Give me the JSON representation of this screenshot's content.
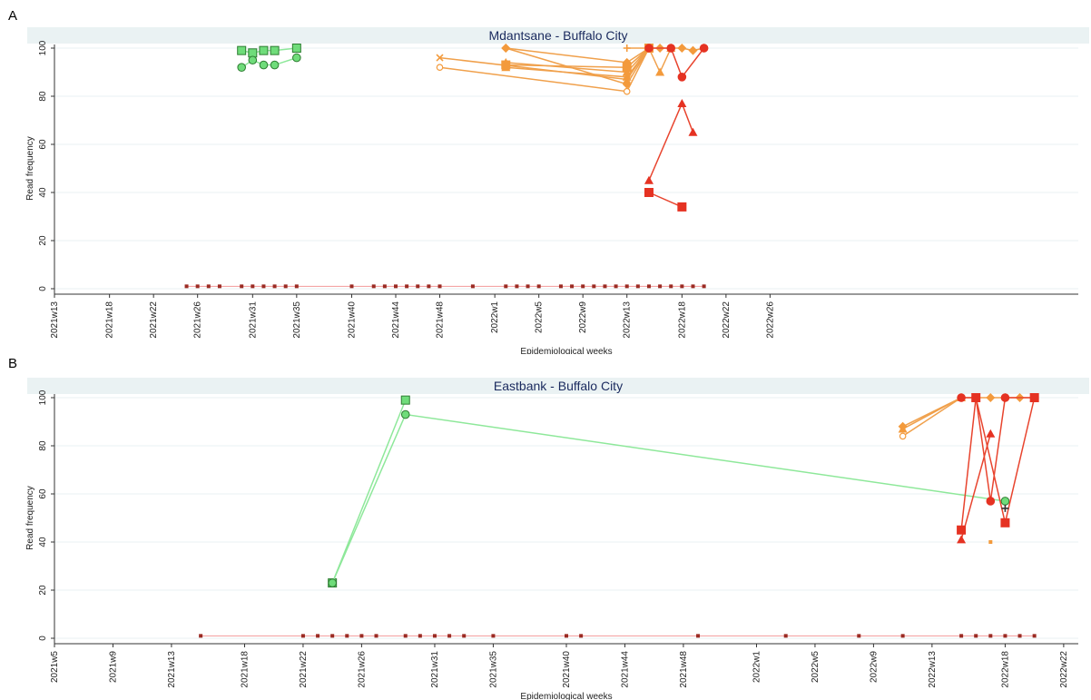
{
  "panels": [
    {
      "letter": "A"
    },
    {
      "letter": "B"
    }
  ],
  "colors": {
    "title_band": "#eaf2f3",
    "title_text": "#1a2a5e",
    "grid": "#eaf2f3",
    "green_line": "#8ee89a",
    "green_fill": "#6fdc7a",
    "orange_line": "#f0a04b",
    "orange_fill": "#f39a3c",
    "red_line": "#e8442e",
    "red_fill": "#e53222",
    "baseline_line": "#f29a9a",
    "baseline_marker": "#9b2b23"
  },
  "chart_data": [
    {
      "type": "line",
      "title": "Mdantsane - Buffalo City",
      "xlabel": "Epidemiological weeks",
      "ylabel": "Read frequency",
      "ylim": [
        0,
        100
      ],
      "yticks": [
        0,
        20,
        40,
        60,
        80,
        100
      ],
      "xlim": [
        13,
        106
      ],
      "xtick_labels": [
        "2021w13",
        "2021w18",
        "2021w22",
        "2021w26",
        "2021w31",
        "2021w35",
        "2021w40",
        "2021w44",
        "2021w48",
        "2022w1",
        "2022w5",
        "2022w9",
        "2022w13",
        "2022w18",
        "2022w22",
        "2022w26"
      ],
      "xtick_weeks": [
        13,
        18,
        22,
        26,
        31,
        35,
        40,
        44,
        48,
        53,
        57,
        61,
        65,
        70,
        74,
        78
      ],
      "series": [
        {
          "color": "green",
          "marker": "square",
          "x": [
            30,
            31,
            32,
            33,
            35
          ],
          "y": [
            99,
            98,
            99,
            99,
            100
          ]
        },
        {
          "color": "green",
          "marker": "circle",
          "x": [
            30,
            31,
            32,
            33,
            35
          ],
          "y": [
            92,
            95,
            93,
            93,
            96
          ]
        },
        {
          "color": "orange",
          "marker": "x",
          "x": [
            48,
            65,
            67
          ],
          "y": [
            96,
            87,
            100
          ]
        },
        {
          "color": "orange",
          "marker": "hollow-circle",
          "x": [
            48,
            65,
            67
          ],
          "y": [
            92,
            82,
            100
          ]
        },
        {
          "color": "orange",
          "marker": "triangle",
          "x": [
            54,
            65,
            67
          ],
          "y": [
            92,
            88,
            100
          ]
        },
        {
          "color": "orange",
          "marker": "triangle",
          "x": [
            54,
            65,
            67
          ],
          "y": [
            94,
            90,
            100
          ]
        },
        {
          "color": "orange",
          "marker": "diamond",
          "x": [
            54,
            65,
            67
          ],
          "y": [
            100,
            85,
            100
          ]
        },
        {
          "color": "orange",
          "marker": "diamond",
          "x": [
            54,
            65,
            67
          ],
          "y": [
            100,
            94,
            100
          ]
        },
        {
          "color": "orange",
          "marker": "square",
          "x": [
            54,
            65,
            67
          ],
          "y": [
            93,
            92,
            100
          ]
        },
        {
          "color": "orange",
          "marker": "plus",
          "x": [
            65,
            67
          ],
          "y": [
            100,
            100
          ]
        },
        {
          "color": "orange",
          "marker": "triangle",
          "x": [
            67,
            68,
            69
          ],
          "y": [
            100,
            90,
            100
          ]
        },
        {
          "color": "orange",
          "marker": "diamond",
          "x": [
            67,
            68,
            69,
            70,
            71,
            72
          ],
          "y": [
            100,
            100,
            100,
            100,
            99,
            100
          ]
        },
        {
          "color": "red",
          "marker": "circle",
          "x": [
            67,
            69,
            70,
            72
          ],
          "y": [
            100,
            100,
            88,
            100
          ]
        },
        {
          "color": "red",
          "marker": "triangle",
          "x": [
            67,
            70,
            71
          ],
          "y": [
            45,
            77,
            65
          ]
        },
        {
          "color": "red",
          "marker": "square",
          "x": [
            67,
            70
          ],
          "y": [
            40,
            34
          ]
        },
        {
          "color": "baseline",
          "marker": "small-square",
          "x": [
            25,
            26,
            27,
            28,
            30,
            31,
            32,
            33,
            34,
            35,
            40,
            42,
            43,
            44,
            45,
            46,
            47,
            48,
            51,
            54,
            55,
            56,
            57,
            59,
            60,
            61,
            62,
            63,
            64,
            65,
            66,
            67,
            68,
            69,
            70,
            71,
            72
          ],
          "y": [
            1,
            1,
            1,
            1,
            1,
            1,
            1,
            1,
            1,
            1,
            1,
            1,
            1,
            1,
            1,
            1,
            1,
            1,
            1,
            1,
            1,
            1,
            1,
            1,
            1,
            1,
            1,
            1,
            1,
            1,
            1,
            1,
            1,
            1,
            1,
            1,
            1
          ]
        }
      ]
    },
    {
      "type": "line",
      "title": "Eastbank - Buffalo City",
      "xlabel": "Epidemiological weeks",
      "ylabel": "Read frequency",
      "ylim": [
        0,
        100
      ],
      "yticks": [
        0,
        20,
        40,
        60,
        80,
        100
      ],
      "xlim": [
        5,
        75
      ],
      "xtick_labels": [
        "2021w5",
        "2021w9",
        "2021w13",
        "2021w18",
        "2021w22",
        "2021w26",
        "2021w31",
        "2021w35",
        "2021w40",
        "2021w44",
        "2021w48",
        "2022w1",
        "2022w5",
        "2022w9",
        "2022w13",
        "2022w18",
        "2022w22"
      ],
      "xtick_weeks": [
        5,
        9,
        13,
        18,
        22,
        26,
        31,
        35,
        40,
        44,
        48,
        53,
        57,
        61,
        65,
        70,
        74
      ],
      "series": [
        {
          "color": "green",
          "marker": "square",
          "x": [
            24,
            29
          ],
          "y": [
            23,
            99
          ]
        },
        {
          "color": "green",
          "marker": "circle",
          "x": [
            24,
            29,
            70
          ],
          "y": [
            23,
            93,
            57
          ]
        },
        {
          "color": "orange",
          "marker": "hollow-circle",
          "x": [
            63,
            67
          ],
          "y": [
            84,
            100
          ]
        },
        {
          "color": "orange",
          "marker": "triangle",
          "x": [
            63,
            67
          ],
          "y": [
            87,
            100
          ]
        },
        {
          "color": "orange",
          "marker": "diamond",
          "x": [
            63,
            67,
            68,
            69,
            70,
            71,
            72
          ],
          "y": [
            88,
            100,
            100,
            100,
            100,
            100,
            100
          ]
        },
        {
          "color": "orange",
          "marker": "small-square",
          "x": [
            69
          ],
          "y": [
            40
          ]
        },
        {
          "color": "red",
          "marker": "circle",
          "x": [
            67,
            68,
            69,
            70,
            72
          ],
          "y": [
            100,
            100,
            57,
            100,
            100
          ]
        },
        {
          "color": "red",
          "marker": "triangle",
          "x": [
            67,
            69
          ],
          "y": [
            41,
            85
          ]
        },
        {
          "color": "red",
          "marker": "square",
          "x": [
            67,
            68,
            70,
            72
          ],
          "y": [
            45,
            100,
            48,
            100
          ]
        },
        {
          "color": "dark",
          "marker": "plus",
          "x": [
            70
          ],
          "y": [
            54
          ]
        },
        {
          "color": "baseline",
          "marker": "small-square",
          "x": [
            15,
            22,
            23,
            24,
            25,
            26,
            27,
            29,
            30,
            31,
            32,
            33,
            35,
            40,
            41,
            49,
            55,
            60,
            63,
            67,
            68,
            69,
            70,
            71,
            72
          ],
          "y": [
            1,
            1,
            1,
            1,
            1,
            1,
            1,
            1,
            1,
            1,
            1,
            1,
            1,
            1,
            1,
            1,
            1,
            1,
            1,
            1,
            1,
            1,
            1,
            1,
            1
          ]
        }
      ]
    }
  ]
}
